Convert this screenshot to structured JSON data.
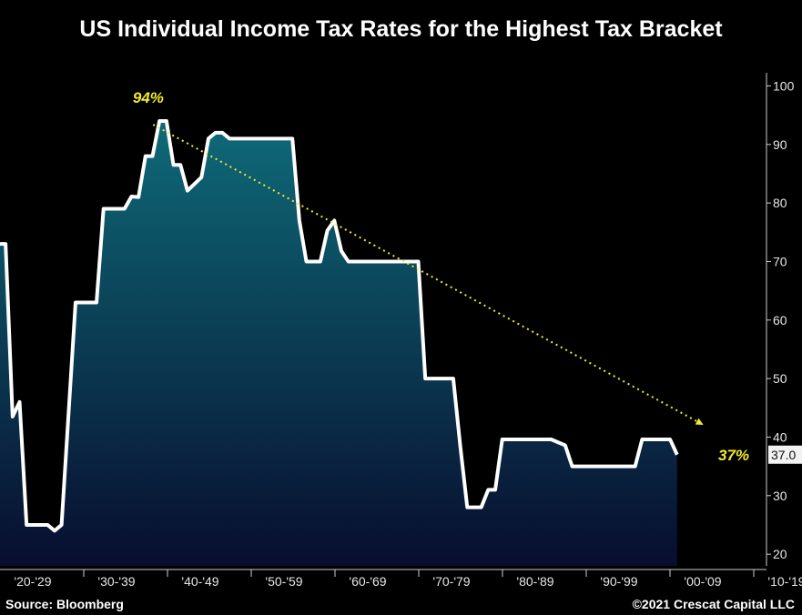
{
  "title": "US Individual Income Tax Rates for the Highest Tax Bracket",
  "source": "Source: Bloomberg",
  "copyright": "©2021 Crescat Capital LLC",
  "colors": {
    "background": "#000000",
    "line": "#ffffff",
    "fill_top": "#0e6a78",
    "fill_bottom": "#080d2e",
    "annotation": "#f2ea2e",
    "axis": "#cfcfcf"
  },
  "chart_data": {
    "type": "area",
    "title": "US Individual Income Tax Rates for the Highest Tax Bracket",
    "xlabel": "",
    "ylabel": "",
    "ylim": [
      18,
      101
    ],
    "xlim": [
      1921.2,
      2030
    ],
    "yticks": [
      20,
      30,
      40,
      50,
      60,
      70,
      80,
      90,
      100
    ],
    "xtick_labels": [
      "'20-'29",
      "'30-'39",
      "'40-'49",
      "'50-'59",
      "'60-'69",
      "'70-'79",
      "'80-'89",
      "'90-'99",
      "'00-'09",
      "'10-'19",
      "'20-'29"
    ],
    "grid": false,
    "y_axis_side": "right",
    "series": [
      {
        "x": [
          1921.2,
          1922,
          1923,
          1924,
          1925,
          1928,
          1929,
          1930,
          1932,
          1935,
          1936,
          1939,
          1940,
          1941,
          1942,
          1943,
          1944,
          1945,
          1946,
          1947,
          1948,
          1950,
          1951,
          1952,
          1953,
          1954,
          1963,
          1964,
          1965,
          1967,
          1968,
          1969,
          1970,
          1971,
          1981,
          1982,
          1986,
          1987,
          1988,
          1990,
          1991,
          1992,
          1993,
          2000,
          2001,
          2002,
          2003,
          2012,
          2013,
          2017,
          2018
        ],
        "y": [
          73,
          73,
          43.5,
          46,
          25,
          25,
          24,
          25,
          63,
          63,
          79,
          79,
          81.1,
          81,
          88,
          88,
          94,
          94,
          86.5,
          86.5,
          82.1,
          84.4,
          91,
          92,
          92,
          91,
          91,
          77,
          70,
          70,
          75.3,
          77,
          71.8,
          70,
          70,
          50,
          50,
          38.5,
          28,
          28,
          31,
          31,
          39.6,
          39.6,
          39.1,
          38.6,
          35,
          35,
          39.6,
          39.6,
          37
        ]
      }
    ],
    "annotations": [
      {
        "text": "94%",
        "x": 1945,
        "y": 94
      },
      {
        "text": "37%",
        "x": 2018,
        "y": 37
      }
    ],
    "last_value_label": "37.0",
    "trend_line": {
      "from": [
        1947,
        94
      ],
      "to": [
        2021,
        41
      ]
    }
  }
}
